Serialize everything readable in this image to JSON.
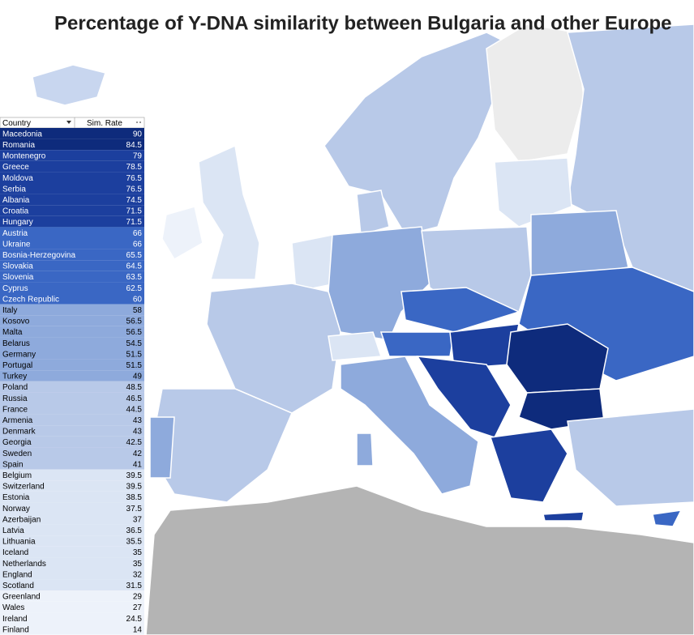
{
  "title": "Percentage of Y-DNA similarity between Bulgaria and other Europe",
  "table": {
    "header": [
      "Country",
      "Sim. Rate"
    ],
    "rows": [
      {
        "country": "Macedonia",
        "sim_rate": 90,
        "color": "#0e2b7c"
      },
      {
        "country": "Romania",
        "sim_rate": 84.5,
        "color": "#0e2b7c"
      },
      {
        "country": "Montenegro",
        "sim_rate": 79,
        "color": "#1c3f9e"
      },
      {
        "country": "Greece",
        "sim_rate": 78.5,
        "color": "#1c3f9e"
      },
      {
        "country": "Moldova",
        "sim_rate": 76.5,
        "color": "#1c3f9e"
      },
      {
        "country": "Serbia",
        "sim_rate": 76.5,
        "color": "#1c3f9e"
      },
      {
        "country": "Albania",
        "sim_rate": 74.5,
        "color": "#1c3f9e"
      },
      {
        "country": "Croatia",
        "sim_rate": 71.5,
        "color": "#1c3f9e"
      },
      {
        "country": "Hungary",
        "sim_rate": 71.5,
        "color": "#1c3f9e"
      },
      {
        "country": "Austria",
        "sim_rate": 66,
        "color": "#3a67c4"
      },
      {
        "country": "Ukraine",
        "sim_rate": 66,
        "color": "#3a67c4"
      },
      {
        "country": "Bosnia-Herzegovina",
        "sim_rate": 65.5,
        "color": "#3a67c4"
      },
      {
        "country": "Slovakia",
        "sim_rate": 64.5,
        "color": "#3a67c4"
      },
      {
        "country": "Slovenia",
        "sim_rate": 63.5,
        "color": "#3a67c4"
      },
      {
        "country": "Cyprus",
        "sim_rate": 62.5,
        "color": "#3a67c4"
      },
      {
        "country": "Czech Republic",
        "sim_rate": 60,
        "color": "#3a67c4"
      },
      {
        "country": "Italy",
        "sim_rate": 58,
        "color": "#8eaadc"
      },
      {
        "country": "Kosovo",
        "sim_rate": 56.5,
        "color": "#8eaadc"
      },
      {
        "country": "Malta",
        "sim_rate": 56.5,
        "color": "#8eaadc"
      },
      {
        "country": "Belarus",
        "sim_rate": 54.5,
        "color": "#8eaadc"
      },
      {
        "country": "Germany",
        "sim_rate": 51.5,
        "color": "#8eaadc"
      },
      {
        "country": "Portugal",
        "sim_rate": 51.5,
        "color": "#8eaadc"
      },
      {
        "country": "Turkey",
        "sim_rate": 49,
        "color": "#8eaadc"
      },
      {
        "country": "Poland",
        "sim_rate": 48.5,
        "color": "#b8c9e8"
      },
      {
        "country": "Russia",
        "sim_rate": 46.5,
        "color": "#b8c9e8"
      },
      {
        "country": "France",
        "sim_rate": 44.5,
        "color": "#b8c9e8"
      },
      {
        "country": "Armenia",
        "sim_rate": 43,
        "color": "#b8c9e8"
      },
      {
        "country": "Denmark",
        "sim_rate": 43,
        "color": "#b8c9e8"
      },
      {
        "country": "Georgia",
        "sim_rate": 42.5,
        "color": "#b8c9e8"
      },
      {
        "country": "Sweden",
        "sim_rate": 42,
        "color": "#b8c9e8"
      },
      {
        "country": "Spain",
        "sim_rate": 41,
        "color": "#b8c9e8"
      },
      {
        "country": "Belgium",
        "sim_rate": 39.5,
        "color": "#dbe5f4"
      },
      {
        "country": "Switzerland",
        "sim_rate": 39.5,
        "color": "#dbe5f4"
      },
      {
        "country": "Estonia",
        "sim_rate": 38.5,
        "color": "#dbe5f4"
      },
      {
        "country": "Norway",
        "sim_rate": 37.5,
        "color": "#dbe5f4"
      },
      {
        "country": "Azerbaijan",
        "sim_rate": 37,
        "color": "#dbe5f4"
      },
      {
        "country": "Latvia",
        "sim_rate": 36.5,
        "color": "#dbe5f4"
      },
      {
        "country": "Lithuania",
        "sim_rate": 35.5,
        "color": "#dbe5f4"
      },
      {
        "country": "Iceland",
        "sim_rate": 35,
        "color": "#dbe5f4"
      },
      {
        "country": "Netherlands",
        "sim_rate": 35,
        "color": "#dbe5f4"
      },
      {
        "country": "England",
        "sim_rate": 32,
        "color": "#dbe5f4"
      },
      {
        "country": "Scotland",
        "sim_rate": 31.5,
        "color": "#dbe5f4"
      },
      {
        "country": "Greenland",
        "sim_rate": 29,
        "color": "#edf2fa"
      },
      {
        "country": "Wales",
        "sim_rate": 27,
        "color": "#edf2fa"
      },
      {
        "country": "Ireland",
        "sim_rate": 24.5,
        "color": "#edf2fa"
      },
      {
        "country": "Finland",
        "sim_rate": 14,
        "color": "#edf2fa"
      }
    ]
  }
}
